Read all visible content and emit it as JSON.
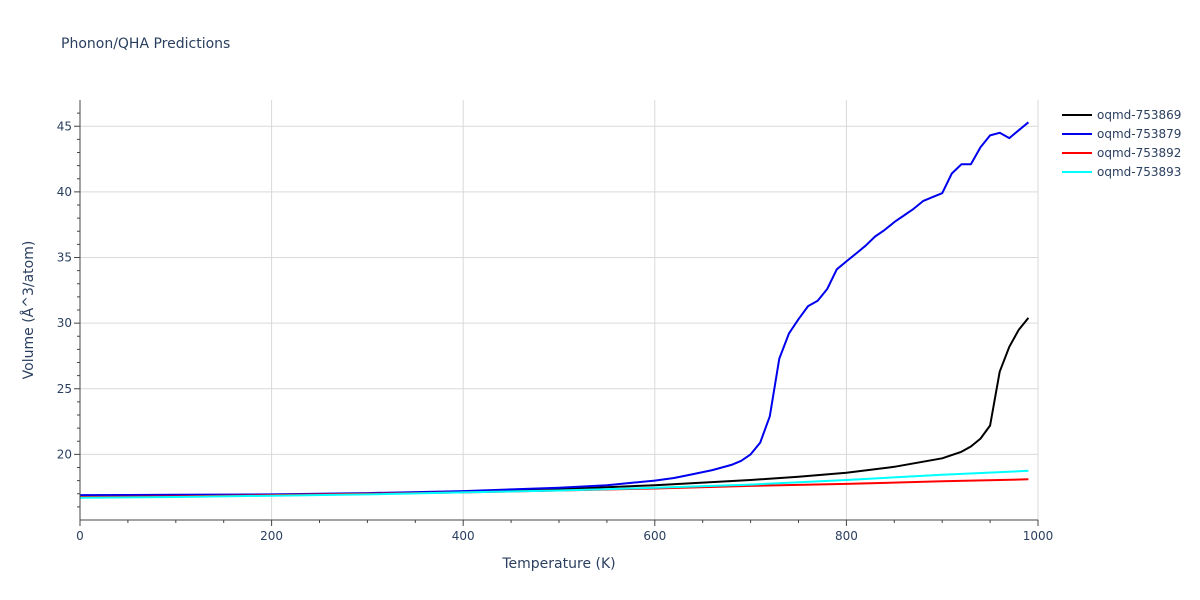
{
  "chart_data": {
    "type": "line",
    "title": "Phonon/QHA Predictions",
    "xlabel": "Temperature (K)",
    "ylabel": "Volume (Å^3/atom)",
    "xlim": [
      0,
      1000
    ],
    "ylim": [
      15.0,
      47.0
    ],
    "xticks": [
      0,
      200,
      400,
      600,
      800,
      1000
    ],
    "yticks": [
      20,
      25,
      30,
      35,
      40,
      45
    ],
    "grid": true,
    "legend_position": "top-right",
    "series": [
      {
        "name": "oqmd-753869",
        "color": "#000000",
        "x": [
          0,
          100,
          200,
          300,
          400,
          500,
          600,
          700,
          750,
          800,
          850,
          900,
          920,
          930,
          940,
          950,
          960,
          970,
          980,
          990
        ],
        "y": [
          16.8,
          16.85,
          16.9,
          17.0,
          17.15,
          17.35,
          17.65,
          18.05,
          18.3,
          18.6,
          19.05,
          19.7,
          20.2,
          20.6,
          21.2,
          22.2,
          26.3,
          28.2,
          29.5,
          30.4
        ]
      },
      {
        "name": "oqmd-753879",
        "color": "#0000ee",
        "x": [
          0,
          100,
          200,
          300,
          400,
          500,
          550,
          600,
          620,
          640,
          660,
          680,
          690,
          700,
          710,
          720,
          730,
          740,
          750,
          760,
          770,
          780,
          790,
          800,
          810,
          820,
          830,
          840,
          850,
          860,
          870,
          880,
          890,
          900,
          910,
          920,
          930,
          940,
          950,
          960,
          970,
          980,
          990
        ],
        "y": [
          16.9,
          16.92,
          16.95,
          17.05,
          17.2,
          17.45,
          17.65,
          18.0,
          18.2,
          18.5,
          18.8,
          19.2,
          19.5,
          20.0,
          20.9,
          22.9,
          27.3,
          29.2,
          30.3,
          31.3,
          31.7,
          32.6,
          34.1,
          34.7,
          35.3,
          35.9,
          36.6,
          37.1,
          37.7,
          38.2,
          38.7,
          39.3,
          39.6,
          39.9,
          41.4,
          42.1,
          42.1,
          43.4,
          44.3,
          44.5,
          44.1,
          44.7,
          45.3
        ]
      },
      {
        "name": "oqmd-753892",
        "color": "#ff0000",
        "x": [
          0,
          100,
          200,
          300,
          400,
          500,
          600,
          700,
          800,
          900,
          990
        ],
        "y": [
          16.75,
          16.8,
          16.9,
          17.0,
          17.1,
          17.25,
          17.4,
          17.6,
          17.75,
          17.95,
          18.1
        ]
      },
      {
        "name": "oqmd-753893",
        "color": "#00ffff",
        "x": [
          0,
          100,
          200,
          300,
          400,
          500,
          600,
          700,
          800,
          900,
          990
        ],
        "y": [
          16.7,
          16.75,
          16.85,
          16.95,
          17.1,
          17.25,
          17.45,
          17.7,
          18.05,
          18.45,
          18.75
        ]
      }
    ]
  }
}
